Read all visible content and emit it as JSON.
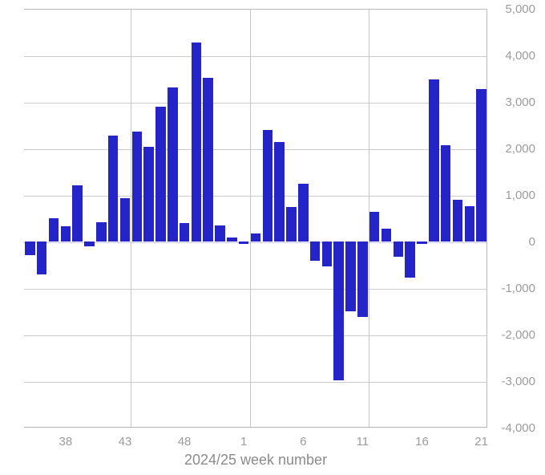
{
  "chart_data": {
    "type": "bar",
    "title": "",
    "xlabel": "2024/25 week number",
    "ylabel": "",
    "categories": [
      "35",
      "36",
      "37",
      "38",
      "39",
      "40",
      "41",
      "42",
      "43",
      "44",
      "45",
      "46",
      "47",
      "48",
      "49",
      "50",
      "51",
      "52",
      "1",
      "2",
      "3",
      "4",
      "5",
      "6",
      "7",
      "8",
      "9",
      "10",
      "11",
      "12",
      "13",
      "14",
      "15",
      "16",
      "17",
      "18",
      "19",
      "20",
      "21"
    ],
    "values": [
      -300,
      -700,
      500,
      320,
      1200,
      -100,
      420,
      2280,
      925,
      2360,
      2030,
      2890,
      3310,
      390,
      4270,
      3510,
      350,
      90,
      -50,
      180,
      2400,
      2130,
      740,
      1240,
      -420,
      -530,
      -2980,
      -1500,
      -1620,
      640,
      270,
      -330,
      -780,
      -50,
      3490,
      2070,
      890,
      760,
      3270
    ],
    "x_tick_labels": [
      "38",
      "43",
      "48",
      "1",
      "6",
      "11",
      "16",
      "21"
    ],
    "x_tick_indices": [
      3,
      8,
      13,
      18,
      23,
      28,
      33,
      38
    ],
    "y_tick_values": [
      5000,
      4000,
      3000,
      2000,
      1000,
      0,
      -1000,
      -2000,
      -3000,
      -4000
    ],
    "y_tick_labels": [
      "5,000",
      "4,000",
      "3,000",
      "2,000",
      "1,000",
      "0",
      "-1,000",
      "-2,000",
      "-3,000",
      "-4,000"
    ],
    "ylim": [
      -4000,
      5000
    ],
    "vgrid_boundary_indices": [
      8,
      18,
      28
    ],
    "grid": true,
    "legend": "none",
    "bar_color": "#2424c8",
    "grid_color": "#cccccc",
    "zero_line_color": "#c7cbee",
    "label_color": "#9b9b9b",
    "title_color": "#8b8b8b"
  }
}
